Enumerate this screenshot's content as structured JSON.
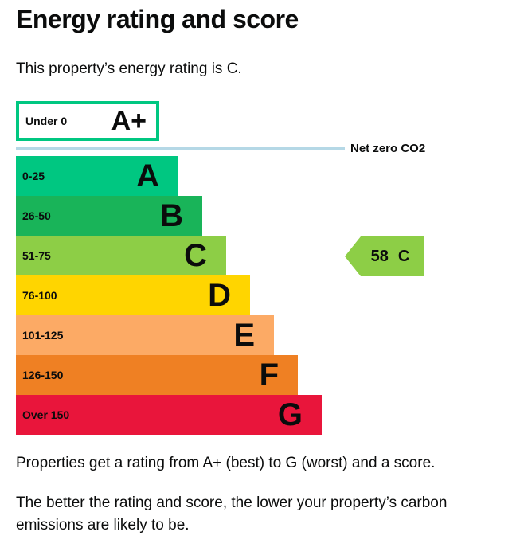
{
  "header": {
    "title": "Energy rating and score",
    "subtitle": "This property’s energy rating is C."
  },
  "chart_data": {
    "type": "rating-scale",
    "title": "Energy rating and score",
    "aplus_band": {
      "range": "Under 0",
      "letter": "A+",
      "fill": "#ffffff",
      "border_color": "#00c781"
    },
    "net_zero": {
      "label": "Net zero CO2",
      "line_color": "#b5d8e6"
    },
    "bands": [
      {
        "range": "0-25",
        "letter": "A",
        "color": "#00c781"
      },
      {
        "range": "26-50",
        "letter": "B",
        "color": "#19b459"
      },
      {
        "range": "51-75",
        "letter": "C",
        "color": "#8dce46"
      },
      {
        "range": "76-100",
        "letter": "D",
        "color": "#ffd500"
      },
      {
        "range": "101-125",
        "letter": "E",
        "color": "#fcaa65"
      },
      {
        "range": "126-150",
        "letter": "F",
        "color": "#ef8023"
      },
      {
        "range": "Over 150",
        "letter": "G",
        "color": "#e9153b"
      }
    ],
    "current": {
      "score": 58,
      "rating": "C",
      "pointer_color": "#8dce46"
    }
  },
  "footer": {
    "para1": "Properties get a rating from A+ (best) to G (worst) and a score.",
    "para2": "The better the rating and score, the lower your property’s carbon emissions are likely to be."
  },
  "colors": {
    "text": "#0b0c0c"
  }
}
